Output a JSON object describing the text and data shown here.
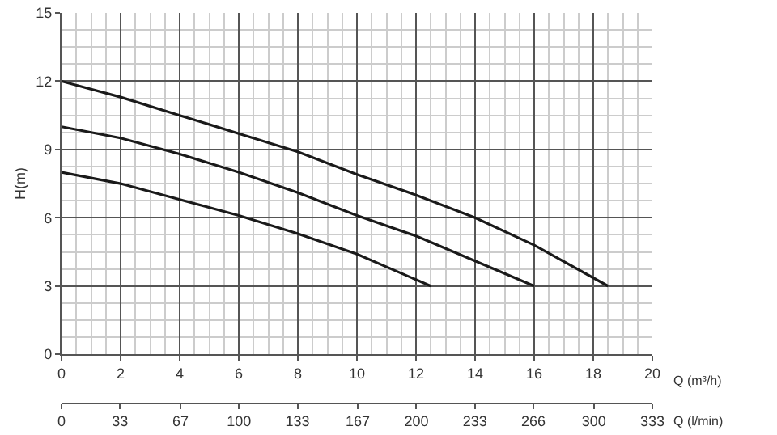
{
  "chart_data": {
    "type": "line",
    "xlabel": "Q (m³/h)",
    "x2label": "Q (l/min)",
    "ylabel": "H(m)",
    "xlim": [
      0,
      20
    ],
    "xticks": [
      0,
      2,
      4,
      6,
      8,
      10,
      12,
      14,
      16,
      18,
      20
    ],
    "x2lim": [
      0,
      333
    ],
    "x2ticks": [
      0,
      33,
      67,
      100,
      133,
      167,
      200,
      233,
      266,
      300,
      333
    ],
    "ylim": [
      0,
      15
    ],
    "yticks": [
      0,
      3,
      6,
      9,
      12,
      15
    ],
    "grid": true,
    "marker": "none",
    "line_style": "solid",
    "series": [
      {
        "color": "#1a1a1a",
        "x": [
          0,
          2,
          4,
          6,
          8,
          10,
          12,
          14,
          16,
          18.5
        ],
        "values": [
          12,
          11.3,
          10.5,
          9.7,
          8.9,
          7.9,
          7.0,
          6.0,
          4.8,
          3
        ]
      },
      {
        "color": "#1a1a1a",
        "x": [
          0,
          2,
          4,
          6,
          8,
          10,
          12,
          14,
          16
        ],
        "values": [
          10,
          9.5,
          8.8,
          8.0,
          7.1,
          6.1,
          5.2,
          4.1,
          3
        ]
      },
      {
        "color": "#1a1a1a",
        "x": [
          0,
          2,
          4,
          6,
          8,
          10,
          12.5
        ],
        "values": [
          8,
          7.5,
          6.8,
          6.1,
          5.3,
          4.4,
          3
        ]
      }
    ]
  }
}
